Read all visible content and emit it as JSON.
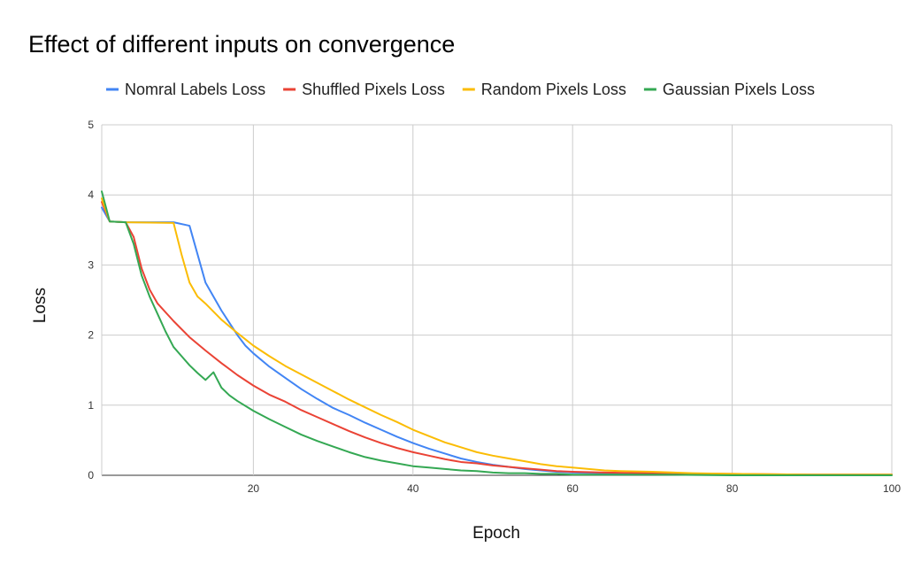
{
  "chart_data": {
    "type": "line",
    "title": "Effect of different inputs on convergence",
    "xlabel": "Epoch",
    "ylabel": "Loss",
    "xlim": [
      1,
      100
    ],
    "ylim": [
      0,
      5
    ],
    "xticks": [
      20,
      40,
      60,
      80,
      100
    ],
    "yticks": [
      0,
      1,
      2,
      3,
      4,
      5
    ],
    "grid": true,
    "legend": "top",
    "series": [
      {
        "name": "Nomral Labels Loss",
        "color": "#4285F4",
        "x": [
          1,
          2,
          4,
          10,
          12,
          14,
          16,
          18,
          19,
          20,
          22,
          24,
          26,
          28,
          30,
          32,
          34,
          36,
          38,
          40,
          42,
          44,
          46,
          48,
          50,
          52,
          54,
          56,
          58,
          60,
          64,
          70,
          80,
          90,
          100
        ],
        "y": [
          3.82,
          3.62,
          3.61,
          3.61,
          3.56,
          2.75,
          2.35,
          2.0,
          1.85,
          1.74,
          1.55,
          1.39,
          1.23,
          1.09,
          0.96,
          0.86,
          0.75,
          0.65,
          0.55,
          0.46,
          0.38,
          0.31,
          0.24,
          0.19,
          0.15,
          0.12,
          0.09,
          0.07,
          0.05,
          0.04,
          0.03,
          0.02,
          0.01,
          0.01,
          0.01
        ]
      },
      {
        "name": "Shuffled Pixels Loss",
        "color": "#EA4335",
        "x": [
          1,
          2,
          4,
          5,
          6,
          7,
          8,
          10,
          12,
          14,
          16,
          18,
          20,
          22,
          24,
          26,
          28,
          30,
          32,
          34,
          36,
          38,
          40,
          42,
          44,
          46,
          48,
          50,
          52,
          54,
          56,
          58,
          60,
          64,
          70,
          80,
          90,
          100
        ],
        "y": [
          3.9,
          3.62,
          3.61,
          3.4,
          2.95,
          2.65,
          2.45,
          2.2,
          1.97,
          1.78,
          1.6,
          1.43,
          1.28,
          1.15,
          1.05,
          0.93,
          0.83,
          0.73,
          0.63,
          0.54,
          0.46,
          0.39,
          0.33,
          0.28,
          0.23,
          0.19,
          0.17,
          0.14,
          0.12,
          0.1,
          0.08,
          0.06,
          0.05,
          0.04,
          0.03,
          0.02,
          0.01,
          0.01
        ]
      },
      {
        "name": "Random Pixels Loss",
        "color": "#FBBC04",
        "x": [
          1,
          2,
          4,
          10,
          11,
          12,
          13,
          14,
          16,
          18,
          20,
          22,
          24,
          26,
          28,
          30,
          32,
          34,
          36,
          38,
          40,
          42,
          44,
          46,
          48,
          50,
          52,
          54,
          56,
          58,
          60,
          62,
          64,
          66,
          70,
          75,
          80,
          90,
          100
        ],
        "y": [
          3.95,
          3.62,
          3.61,
          3.6,
          3.15,
          2.75,
          2.55,
          2.45,
          2.22,
          2.03,
          1.85,
          1.7,
          1.56,
          1.44,
          1.32,
          1.2,
          1.08,
          0.97,
          0.86,
          0.76,
          0.65,
          0.56,
          0.47,
          0.4,
          0.33,
          0.28,
          0.24,
          0.2,
          0.16,
          0.13,
          0.11,
          0.09,
          0.07,
          0.06,
          0.05,
          0.03,
          0.02,
          0.01,
          0.01
        ]
      },
      {
        "name": "Gaussian Pixels Loss",
        "color": "#34A853",
        "x": [
          1,
          2,
          4,
          5,
          6,
          7,
          8,
          9,
          10,
          11,
          12,
          13,
          14,
          15,
          16,
          17,
          18,
          20,
          22,
          24,
          26,
          28,
          30,
          32,
          34,
          36,
          38,
          40,
          42,
          44,
          46,
          48,
          50,
          52,
          54,
          56,
          58,
          60,
          64,
          70,
          80,
          90,
          100
        ],
        "y": [
          4.05,
          3.62,
          3.61,
          3.3,
          2.85,
          2.55,
          2.3,
          2.05,
          1.83,
          1.7,
          1.57,
          1.46,
          1.36,
          1.47,
          1.25,
          1.14,
          1.06,
          0.92,
          0.8,
          0.69,
          0.58,
          0.49,
          0.41,
          0.33,
          0.26,
          0.21,
          0.17,
          0.13,
          0.11,
          0.09,
          0.07,
          0.06,
          0.04,
          0.03,
          0.03,
          0.02,
          0.02,
          0.01,
          0.01,
          0.01,
          0.0,
          0.0,
          0.0
        ]
      }
    ]
  }
}
